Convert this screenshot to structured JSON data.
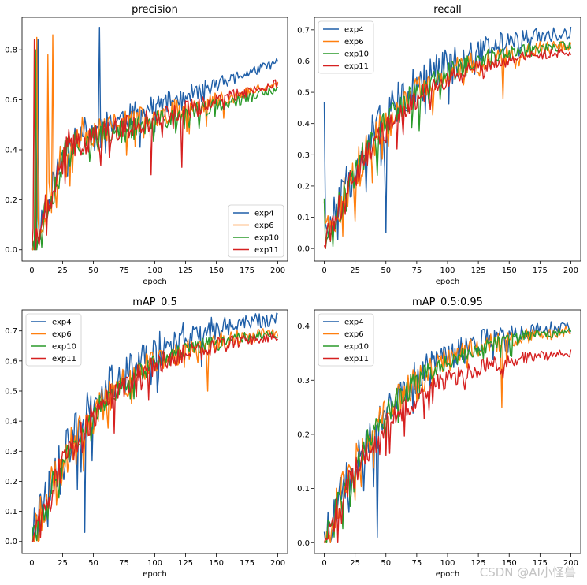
{
  "figure": {
    "watermark": "CSDN @AI小怪兽",
    "series_colors": {
      "exp4": "#1f5fa8",
      "exp6": "#ff7f0e",
      "exp10": "#2a9a2a",
      "exp11": "#d62020"
    }
  },
  "chart_data": [
    {
      "type": "line",
      "title": "precision",
      "xlabel": "epoch",
      "ylabel": "",
      "xlim": [
        -8,
        208
      ],
      "ylim": [
        -0.045,
        0.93
      ],
      "xticks": [
        0,
        25,
        50,
        75,
        100,
        125,
        150,
        175,
        200
      ],
      "yticks": [
        0.0,
        0.2,
        0.4,
        0.6,
        0.8
      ],
      "ytick_labels": [
        "0.0",
        "0.2",
        "0.4",
        "0.6",
        "0.8"
      ],
      "legend_position": "lower-right",
      "series": [
        {
          "name": "exp4",
          "start": 0.0,
          "plateau": 0.45,
          "final": 0.75,
          "noise": 0.07,
          "seed": 11,
          "spikes": [
            [
              55,
              0.89
            ],
            [
              5,
              0.84
            ]
          ]
        },
        {
          "name": "exp6",
          "start": 0.0,
          "plateau": 0.45,
          "final": 0.66,
          "noise": 0.08,
          "seed": 23,
          "spikes": [
            [
              17,
              0.86
            ],
            [
              13,
              0.78
            ],
            [
              4,
              0.85
            ]
          ]
        },
        {
          "name": "exp10",
          "start": 0.0,
          "plateau": 0.42,
          "final": 0.64,
          "noise": 0.07,
          "seed": 37,
          "spikes": [
            [
              3,
              0.8
            ]
          ]
        },
        {
          "name": "exp11",
          "start": 0.0,
          "plateau": 0.42,
          "final": 0.67,
          "noise": 0.07,
          "seed": 41,
          "spikes": [
            [
              2,
              0.84
            ],
            [
              97,
              0.3
            ],
            [
              122,
              0.33
            ]
          ]
        }
      ]
    },
    {
      "type": "line",
      "title": "recall",
      "xlabel": "epoch",
      "ylabel": "",
      "xlim": [
        -8,
        208
      ],
      "ylim": [
        -0.04,
        0.74
      ],
      "xticks": [
        0,
        25,
        50,
        75,
        100,
        125,
        150,
        175,
        200
      ],
      "yticks": [
        0.0,
        0.1,
        0.2,
        0.3,
        0.4,
        0.5,
        0.6,
        0.7
      ],
      "ytick_labels": [
        "0.0",
        "0.1",
        "0.2",
        "0.3",
        "0.4",
        "0.5",
        "0.6",
        "0.7"
      ],
      "legend_position": "top-left",
      "series": [
        {
          "name": "exp4",
          "start": 0.47,
          "plateau": 0.05,
          "final": 0.69,
          "noise": 0.08,
          "seed": 51,
          "spikes": [
            [
              0,
              0.47
            ],
            [
              50,
              0.05
            ]
          ]
        },
        {
          "name": "exp6",
          "start": 0.15,
          "plateau": 0.05,
          "final": 0.65,
          "noise": 0.07,
          "seed": 63,
          "spikes": [
            [
              145,
              0.48
            ]
          ]
        },
        {
          "name": "exp10",
          "start": 0.16,
          "plateau": 0.05,
          "final": 0.65,
          "noise": 0.06,
          "seed": 77,
          "spikes": []
        },
        {
          "name": "exp11",
          "start": 0.01,
          "plateau": 0.05,
          "final": 0.63,
          "noise": 0.05,
          "seed": 89,
          "spikes": []
        }
      ]
    },
    {
      "type": "line",
      "title": "mAP_0.5",
      "xlabel": "epoch",
      "ylabel": "",
      "xlim": [
        -8,
        208
      ],
      "ylim": [
        -0.04,
        0.77
      ],
      "xticks": [
        0,
        25,
        50,
        75,
        100,
        125,
        150,
        175,
        200
      ],
      "yticks": [
        0.0,
        0.1,
        0.2,
        0.3,
        0.4,
        0.5,
        0.6,
        0.7
      ],
      "ytick_labels": [
        "0.0",
        "0.1",
        "0.2",
        "0.3",
        "0.4",
        "0.5",
        "0.6",
        "0.7"
      ],
      "legend_position": "top-left",
      "series": [
        {
          "name": "exp4",
          "start": 0.05,
          "plateau": 0.0,
          "final": 0.74,
          "noise": 0.09,
          "seed": 101,
          "spikes": [
            [
              43,
              0.03
            ]
          ]
        },
        {
          "name": "exp6",
          "start": 0.0,
          "plateau": 0.0,
          "final": 0.69,
          "noise": 0.08,
          "seed": 113,
          "spikes": [
            [
              143,
              0.5
            ]
          ]
        },
        {
          "name": "exp10",
          "start": 0.0,
          "plateau": 0.0,
          "final": 0.69,
          "noise": 0.05,
          "seed": 127,
          "spikes": []
        },
        {
          "name": "exp11",
          "start": 0.0,
          "plateau": 0.0,
          "final": 0.68,
          "noise": 0.06,
          "seed": 131,
          "spikes": []
        }
      ]
    },
    {
      "type": "line",
      "title": "mAP_0.5:0.95",
      "xlabel": "epoch",
      "ylabel": "",
      "xlim": [
        -8,
        208
      ],
      "ylim": [
        -0.02,
        0.43
      ],
      "xticks": [
        0,
        25,
        50,
        75,
        100,
        125,
        150,
        175,
        200
      ],
      "yticks": [
        0.0,
        0.1,
        0.2,
        0.3,
        0.4
      ],
      "ytick_labels": [
        "0.0",
        "0.1",
        "0.2",
        "0.3",
        "0.4"
      ],
      "legend_position": "top-left",
      "series": [
        {
          "name": "exp4",
          "start": 0.02,
          "plateau": 0.0,
          "final": 0.4,
          "noise": 0.045,
          "seed": 141,
          "spikes": [
            [
              43,
              0.01
            ]
          ]
        },
        {
          "name": "exp6",
          "start": 0.0,
          "plateau": 0.0,
          "final": 0.39,
          "noise": 0.04,
          "seed": 153,
          "spikes": [
            [
              144,
              0.25
            ]
          ]
        },
        {
          "name": "exp10",
          "start": 0.0,
          "plateau": 0.0,
          "final": 0.39,
          "noise": 0.03,
          "seed": 167,
          "spikes": []
        },
        {
          "name": "exp11",
          "start": 0.0,
          "plateau": 0.0,
          "final": 0.35,
          "noise": 0.03,
          "seed": 179,
          "spikes": []
        }
      ]
    }
  ]
}
